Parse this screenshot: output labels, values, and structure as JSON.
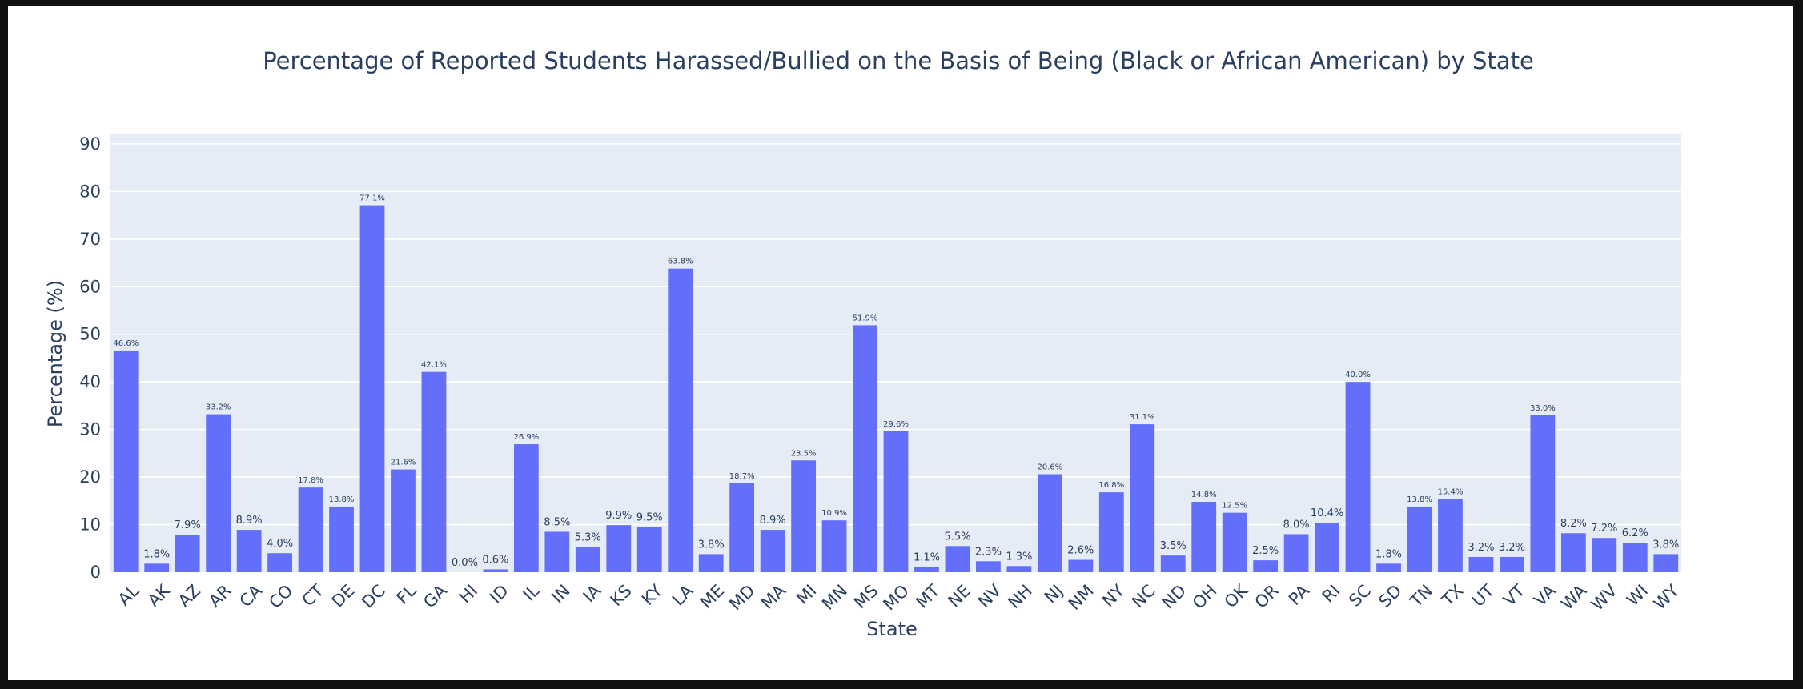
{
  "chart_data": {
    "type": "bar",
    "title": "Percentage of Reported Students Harassed/Bullied on the Basis of Being (Black or African American) by State",
    "xlabel": "State",
    "ylabel": "Percentage (%)",
    "ylim": [
      0,
      92
    ],
    "yticks": [
      0,
      10,
      20,
      30,
      40,
      50,
      60,
      70,
      80,
      90
    ],
    "grid": true,
    "bar_color": "#636efa",
    "plot_background": "#e5ecf6",
    "categories": [
      "AL",
      "AK",
      "AZ",
      "AR",
      "CA",
      "CO",
      "CT",
      "DE",
      "DC",
      "FL",
      "GA",
      "HI",
      "ID",
      "IL",
      "IN",
      "IA",
      "KS",
      "KY",
      "LA",
      "ME",
      "MD",
      "MA",
      "MI",
      "MN",
      "MS",
      "MO",
      "MT",
      "NE",
      "NV",
      "NH",
      "NJ",
      "NM",
      "NY",
      "NC",
      "ND",
      "OH",
      "OK",
      "OR",
      "PA",
      "RI",
      "SC",
      "SD",
      "TN",
      "TX",
      "UT",
      "VT",
      "VA",
      "WA",
      "WV",
      "WI",
      "WY"
    ],
    "values": [
      46.6,
      1.8,
      7.9,
      33.2,
      8.9,
      4.0,
      17.8,
      13.8,
      77.1,
      21.6,
      42.1,
      0.0,
      0.6,
      26.9,
      8.5,
      5.3,
      9.9,
      9.5,
      63.8,
      3.8,
      18.7,
      8.9,
      23.5,
      10.9,
      51.9,
      29.6,
      1.1,
      5.5,
      2.3,
      1.3,
      20.6,
      2.6,
      16.8,
      31.1,
      3.5,
      14.8,
      12.5,
      2.5,
      8.0,
      10.4,
      40.0,
      1.8,
      13.8,
      15.4,
      3.2,
      3.2,
      33.0,
      8.2,
      7.2,
      6.2,
      3.8
    ],
    "data_labels": [
      "46.6%",
      "1.8%",
      "7.9%",
      "33.2%",
      "8.9%",
      "4.0%",
      "17.8%",
      "13.8%",
      "77.1%",
      "21.6%",
      "42.1%",
      "0.0%",
      "0.6%",
      "26.9%",
      "8.5%",
      "5.3%",
      "9.9%",
      "9.5%",
      "63.8%",
      "3.8%",
      "18.7%",
      "8.9%",
      "23.5%",
      "10.9%",
      "51.9%",
      "29.6%",
      "1.1%",
      "5.5%",
      "2.3%",
      "1.3%",
      "20.6%",
      "2.6%",
      "16.8%",
      "31.1%",
      "3.5%",
      "14.8%",
      "12.5%",
      "2.5%",
      "8.0%",
      "10.4%",
      "40.0%",
      "1.8%",
      "13.8%",
      "15.4%",
      "3.2%",
      "3.2%",
      "33.0%",
      "8.2%",
      "7.2%",
      "6.2%",
      "3.8%"
    ]
  }
}
